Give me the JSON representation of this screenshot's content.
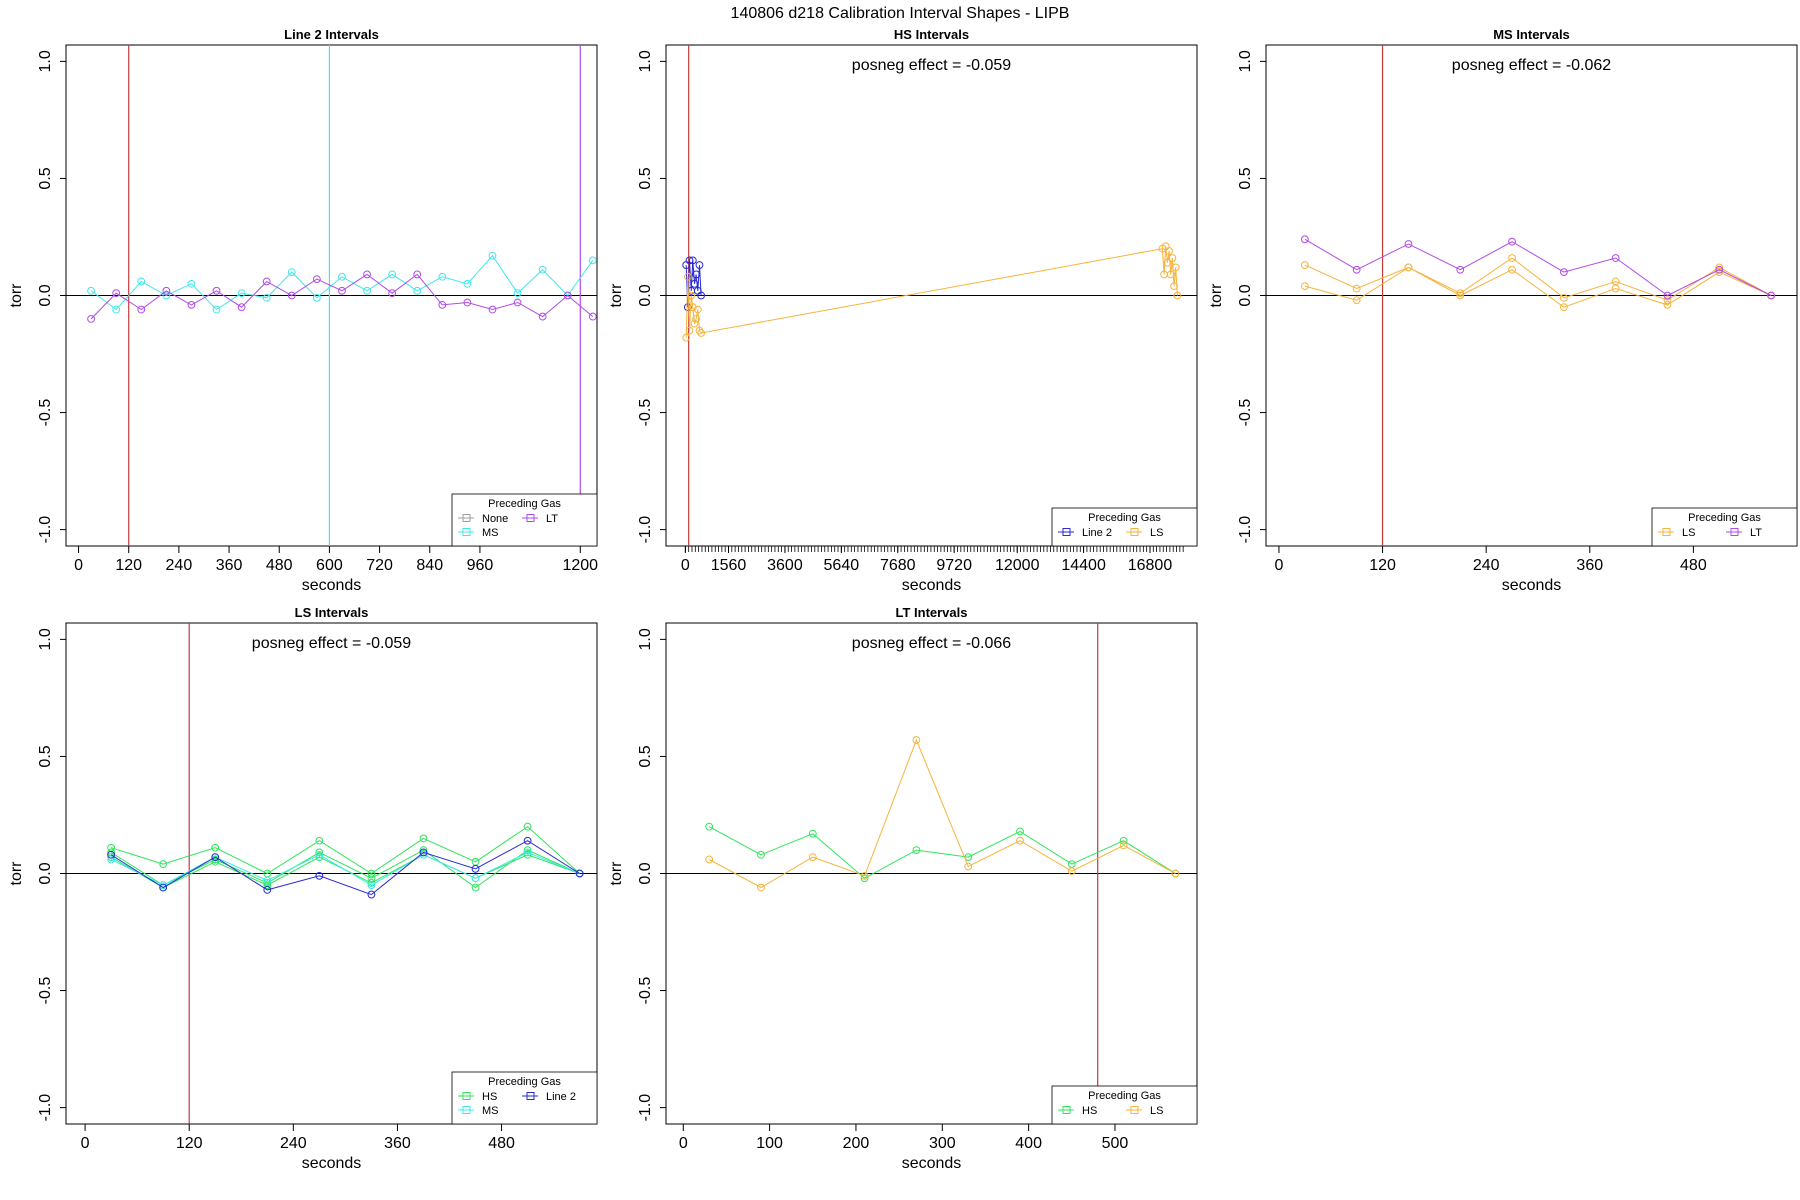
{
  "figure_title": "140806   d218   Calibration Interval Shapes - LIPB",
  "legend_title": "Preceding Gas",
  "colors": {
    "None": "#9e9e9e",
    "MS": "#3fe8ec",
    "LT": "#b04be8",
    "HS": "#2ee65a",
    "Line 2": "#2a2ad6",
    "LS": "#f7b33b",
    "marker_line": "#c23b3b",
    "zero_line": "#000000"
  },
  "chart_data": [
    {
      "type": "line",
      "title": "Line 2 Intervals",
      "xlabel": "seconds",
      "ylabel": "torr",
      "xlim": [
        -30,
        1240
      ],
      "ylim": [
        -1.07,
        1.07
      ],
      "yticks": [
        "-1.0",
        "-0.5",
        "0.0",
        "0.5",
        "1.0"
      ],
      "ytick_values": [
        -1.0,
        -0.5,
        0.0,
        0.5,
        1.0
      ],
      "xticks": [
        "0",
        "120",
        "240",
        "360",
        "480",
        "600",
        "720",
        "840",
        "960",
        "1200"
      ],
      "xtick_values": [
        0,
        120,
        240,
        360,
        480,
        600,
        720,
        840,
        960,
        1200
      ],
      "vlines": [
        {
          "x": 120,
          "series": "marker"
        },
        {
          "x": 600,
          "series": "MS"
        },
        {
          "x": 1200,
          "series": "LT"
        }
      ],
      "legend": {
        "position": "bottom-right",
        "entries": [
          "None",
          "MS",
          "LT"
        ]
      },
      "series": [
        {
          "name": "MS",
          "x": [
            30,
            90,
            150,
            210,
            270,
            330,
            390,
            450,
            510,
            570,
            630,
            690,
            750,
            810,
            870,
            930,
            990,
            1050,
            1110,
            1170,
            1230
          ],
          "y": [
            0.02,
            -0.06,
            0.06,
            0.0,
            0.05,
            -0.06,
            0.01,
            -0.01,
            0.1,
            -0.01,
            0.08,
            0.02,
            0.09,
            0.02,
            0.08,
            0.05,
            0.17,
            0.01,
            0.11,
            0.0,
            0.15
          ]
        },
        {
          "name": "LT",
          "x": [
            30,
            90,
            150,
            210,
            270,
            330,
            390,
            450,
            510,
            570,
            630,
            690,
            750,
            810,
            870,
            930,
            990,
            1050,
            1110,
            1170,
            1230
          ],
          "y": [
            -0.1,
            0.01,
            -0.06,
            0.02,
            -0.04,
            0.02,
            -0.05,
            0.06,
            0.0,
            0.07,
            0.02,
            0.09,
            0.01,
            0.09,
            -0.04,
            -0.03,
            -0.06,
            -0.03,
            -0.09,
            0.0,
            -0.09
          ]
        }
      ]
    },
    {
      "type": "line",
      "title": "HS Intervals",
      "xlabel": "seconds",
      "ylabel": "torr",
      "annotation": "posneg effect = -0.059",
      "xlim": [
        -700,
        18500
      ],
      "ylim": [
        -1.07,
        1.07
      ],
      "yticks": [
        "-1.0",
        "-0.5",
        "0.0",
        "0.5",
        "1.0"
      ],
      "ytick_values": [
        -1.0,
        -0.5,
        0.0,
        0.5,
        1.0
      ],
      "xticks": [
        "0",
        "1560",
        "3600",
        "5640",
        "7680",
        "9720",
        "12000",
        "14400",
        "16800"
      ],
      "xtick_values": [
        0,
        1560,
        3600,
        5640,
        7680,
        9720,
        12000,
        14400,
        16800
      ],
      "minor_tick_step": 120,
      "minor_tick_range": [
        0,
        18000
      ],
      "vlines": [
        {
          "x": 120,
          "series": "marker"
        }
      ],
      "legend": {
        "position": "bottom-right",
        "entries": [
          "Line 2",
          "LS"
        ]
      },
      "series": [
        {
          "name": "Line 2",
          "x": [
            30,
            90,
            150,
            210,
            270,
            330,
            390,
            450,
            510,
            570
          ],
          "y": [
            0.13,
            -0.05,
            0.15,
            0.02,
            0.15,
            0.05,
            0.09,
            0.02,
            0.13,
            0.0
          ]
        },
        {
          "name": "LS",
          "x": [
            30,
            90,
            150,
            210,
            270,
            330,
            390,
            450,
            510,
            570,
            17250,
            17310,
            17370,
            17430,
            17490,
            17550,
            17610,
            17670,
            17730,
            17790
          ],
          "y": [
            -0.18,
            0.08,
            -0.15,
            0.0,
            -0.05,
            -0.12,
            -0.1,
            -0.06,
            -0.15,
            -0.16,
            0.2,
            0.09,
            0.21,
            0.14,
            0.19,
            0.09,
            0.16,
            0.04,
            0.12,
            0.0
          ]
        }
      ]
    },
    {
      "type": "line",
      "title": "MS Intervals",
      "xlabel": "seconds",
      "ylabel": "torr",
      "annotation": "posneg effect = -0.062",
      "xlim": [
        -15,
        600
      ],
      "ylim": [
        -1.07,
        1.07
      ],
      "yticks": [
        "-1.0",
        "-0.5",
        "0.0",
        "0.5",
        "1.0"
      ],
      "ytick_values": [
        -1.0,
        -0.5,
        0.0,
        0.5,
        1.0
      ],
      "xticks": [
        "0",
        "120",
        "240",
        "360",
        "480"
      ],
      "xtick_values": [
        0,
        120,
        240,
        360,
        480
      ],
      "vlines": [
        {
          "x": 120,
          "series": "marker"
        }
      ],
      "legend": {
        "position": "bottom-right",
        "entries": [
          "LS",
          "LT"
        ]
      },
      "series": [
        {
          "name": "LS",
          "x": [
            30,
            90,
            150,
            210,
            270,
            330,
            390,
            450,
            510,
            570
          ],
          "y": [
            0.13,
            0.03,
            0.12,
            0.01,
            0.16,
            -0.01,
            0.06,
            -0.02,
            0.12,
            0.0
          ]
        },
        {
          "name": "LS",
          "x": [
            30,
            90,
            150,
            210,
            270,
            330,
            390,
            450,
            510,
            570
          ],
          "y": [
            0.04,
            -0.02,
            0.12,
            0.0,
            0.11,
            -0.05,
            0.03,
            -0.04,
            0.1,
            0.0
          ]
        },
        {
          "name": "LT",
          "x": [
            30,
            90,
            150,
            210,
            270,
            330,
            390,
            450,
            510,
            570
          ],
          "y": [
            0.24,
            0.11,
            0.22,
            0.11,
            0.23,
            0.1,
            0.16,
            0.0,
            0.11,
            0.0
          ]
        }
      ]
    },
    {
      "type": "line",
      "title": "LS Intervals",
      "xlabel": "seconds",
      "ylabel": "torr",
      "annotation": "posneg effect = -0.059",
      "xlim": [
        -22,
        590
      ],
      "ylim": [
        -1.07,
        1.07
      ],
      "yticks": [
        "-1.0",
        "-0.5",
        "0.0",
        "0.5",
        "1.0"
      ],
      "ytick_values": [
        -1.0,
        -0.5,
        0.0,
        0.5,
        1.0
      ],
      "xticks": [
        "0",
        "120",
        "240",
        "360",
        "480"
      ],
      "xtick_values": [
        0,
        120,
        240,
        360,
        480
      ],
      "vlines": [
        {
          "x": 120,
          "series": "marker"
        }
      ],
      "legend": {
        "position": "bottom-right",
        "entries": [
          "HS",
          "MS",
          "Line 2"
        ]
      },
      "series": [
        {
          "name": "HS",
          "x": [
            30,
            90,
            150,
            210,
            270,
            330,
            390,
            450,
            510,
            570
          ],
          "y": [
            0.11,
            0.04,
            0.11,
            0.0,
            0.14,
            0.0,
            0.15,
            0.05,
            0.2,
            0.0
          ]
        },
        {
          "name": "HS",
          "x": [
            30,
            90,
            150,
            210,
            270,
            330,
            390,
            450,
            510,
            570
          ],
          "y": [
            0.09,
            -0.05,
            0.06,
            -0.04,
            0.09,
            -0.02,
            0.1,
            -0.06,
            0.1,
            0.0
          ]
        },
        {
          "name": "HS",
          "x": [
            30,
            90,
            150,
            210,
            270,
            330,
            390,
            450,
            510,
            570
          ],
          "y": [
            0.07,
            -0.06,
            0.05,
            -0.05,
            0.07,
            -0.04,
            0.08,
            -0.02,
            0.08,
            0.0
          ]
        },
        {
          "name": "MS",
          "x": [
            30,
            90,
            150,
            210,
            270,
            330,
            390,
            450,
            510,
            570
          ],
          "y": [
            0.06,
            -0.05,
            0.07,
            -0.03,
            0.08,
            -0.05,
            0.08,
            -0.02,
            0.09,
            0.0
          ]
        },
        {
          "name": "Line 2",
          "x": [
            30,
            90,
            150,
            210,
            270,
            330,
            390,
            450,
            510,
            570
          ],
          "y": [
            0.08,
            -0.06,
            0.07,
            -0.07,
            -0.01,
            -0.09,
            0.09,
            0.02,
            0.14,
            0.0
          ]
        }
      ]
    },
    {
      "type": "line",
      "title": "LT Intervals",
      "xlabel": "seconds",
      "ylabel": "torr",
      "annotation": "posneg effect = -0.066",
      "xlim": [
        -20,
        595
      ],
      "ylim": [
        -1.07,
        1.07
      ],
      "yticks": [
        "-1.0",
        "-0.5",
        "0.0",
        "0.5",
        "1.0"
      ],
      "ytick_values": [
        -1.0,
        -0.5,
        0.0,
        0.5,
        1.0
      ],
      "xticks": [
        "0",
        "100",
        "200",
        "300",
        "400",
        "500"
      ],
      "xtick_values": [
        0,
        100,
        200,
        300,
        400,
        500
      ],
      "vlines": [
        {
          "x": 480,
          "series": "marker"
        }
      ],
      "legend": {
        "position": "bottom-right",
        "entries": [
          "HS",
          "LS"
        ]
      },
      "series": [
        {
          "name": "HS",
          "x": [
            30,
            90,
            150,
            210,
            270,
            330,
            390,
            450,
            510,
            570
          ],
          "y": [
            0.2,
            0.08,
            0.17,
            -0.02,
            0.1,
            0.07,
            0.18,
            0.04,
            0.14,
            0.0
          ]
        },
        {
          "name": "LS",
          "x": [
            30,
            90,
            150,
            210,
            270,
            330,
            390,
            450,
            510,
            570
          ],
          "y": [
            0.06,
            -0.06,
            0.07,
            -0.01,
            0.57,
            0.03,
            0.14,
            0.01,
            0.12,
            0.0
          ]
        }
      ]
    }
  ]
}
